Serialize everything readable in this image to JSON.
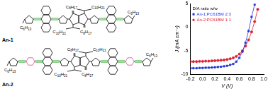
{
  "molecules": [
    {
      "label": "An-1",
      "end_groups": [
        "C6H13",
        "C6H13"
      ],
      "chains_top": [
        "C8H17",
        "C10H21"
      ],
      "chains_bottom": [
        "C10H21",
        "C8H17"
      ]
    },
    {
      "label": "An-2",
      "end_groups": [
        "C6H13",
        "C6H13"
      ],
      "chains_top": [
        "C8H17",
        "C10H21"
      ],
      "chains_bottom": [
        "C10H21",
        "C8H17"
      ]
    }
  ],
  "chart_data": {
    "type": "scatter",
    "x_label": "V (V)",
    "y_label": "J (mA cm⁻²)",
    "legend_title": "D/A ratio w/w",
    "legend": "upper left",
    "grid": false,
    "xlim": [
      -0.2,
      1.0
    ],
    "xticks": [
      -0.2,
      {
        "value": 0,
        "label": "0.0"
      },
      0.2,
      0.4,
      0.6,
      0.8,
      {
        "value": 1,
        "label": "1.0"
      }
    ],
    "ylim": [
      -10,
      5
    ],
    "yticks": [
      -10,
      -5,
      0,
      5
    ],
    "series": [
      {
        "name": "An-1:PC61BM 2:3",
        "color": "#2233dd",
        "marker": "square",
        "line_style": "solid",
        "x": [
          -0.2,
          -0.15,
          -0.1,
          -0.05,
          0,
          0.05,
          0.1,
          0.15,
          0.2,
          0.25,
          0.3,
          0.35,
          0.4,
          0.45,
          0.5,
          0.55,
          0.6,
          0.65,
          0.7,
          0.75,
          0.8,
          0.85
        ],
        "values": [
          -8.7,
          -8.7,
          -8.7,
          -8.65,
          -8.65,
          -8.6,
          -8.6,
          -8.55,
          -8.5,
          -8.45,
          -8.4,
          -8.3,
          -8.2,
          -8.0,
          -7.8,
          -7.3,
          -6.5,
          -5.2,
          -3.3,
          -0.8,
          2.2,
          4.8
        ]
      },
      {
        "name": "An-2:PC61BM 1:1",
        "color": "#e02030",
        "marker": "circle",
        "line_style": "solid",
        "x": [
          -0.2,
          -0.15,
          -0.1,
          -0.05,
          0,
          0.05,
          0.1,
          0.15,
          0.2,
          0.25,
          0.3,
          0.35,
          0.4,
          0.45,
          0.5,
          0.55,
          0.6,
          0.65,
          0.7,
          0.75,
          0.8,
          0.85,
          0.9
        ],
        "values": [
          -7.3,
          -7.3,
          -7.3,
          -7.25,
          -7.25,
          -7.2,
          -7.2,
          -7.15,
          -7.1,
          -7.05,
          -7.0,
          -6.95,
          -6.85,
          -6.7,
          -6.5,
          -6.2,
          -5.7,
          -5.0,
          -4.0,
          -2.7,
          -1.0,
          1.2,
          3.8
        ]
      }
    ]
  }
}
